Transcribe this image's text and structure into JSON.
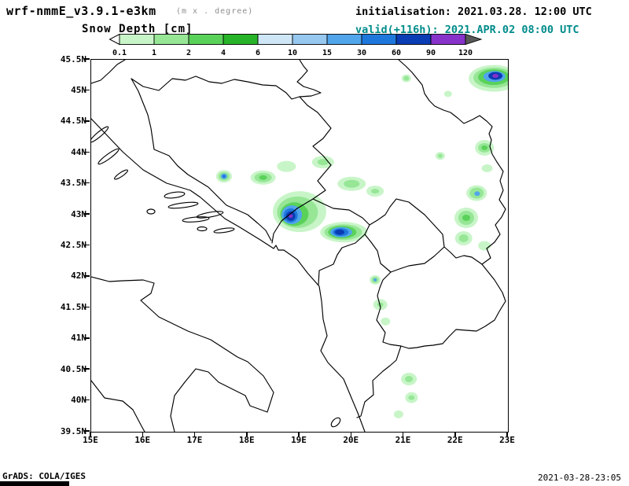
{
  "header": {
    "model": "wrf-nmmE_v3.9.1-e3km",
    "model_suffix": "(m x . degree)",
    "variable": "Snow Depth [cm]",
    "init_label": "initialisation: 2021.03.28.  12:00 UTC",
    "valid_label": "valid(+116h): 2021.APR.02 08:00 UTC"
  },
  "colorbar": {
    "tick_labels": [
      "0.1",
      "1",
      "2",
      "4",
      "6",
      "10",
      "15",
      "30",
      "60",
      "90",
      "120"
    ],
    "segment_colors": [
      "#c8f5c8",
      "#96e696",
      "#5ad25a",
      "#28b428",
      "#cee6f5",
      "#96c8f0",
      "#50a5eb",
      "#1e78dc",
      "#0a3cb4",
      "#8732c8"
    ],
    "underflow_color": "#ffffff",
    "overflow_color": "#585858"
  },
  "axes": {
    "y_ticks": [
      "45.5N",
      "45N",
      "44.5N",
      "44N",
      "43.5N",
      "43N",
      "42.5N",
      "42N",
      "41.5N",
      "41N",
      "40.5N",
      "40N",
      "39.5N"
    ],
    "x_ticks": [
      "15E",
      "16E",
      "17E",
      "18E",
      "19E",
      "20E",
      "21E",
      "22E",
      "23E"
    ]
  },
  "footer": {
    "left": "GrADS: COLA/IGES",
    "right": "2021-03-28-23:05"
  },
  "chart_data": {
    "type": "heatmap",
    "title": "Snow Depth [cm]",
    "model": "wrf-nmmE_v3.9.1-e3km",
    "initialisation": "2021.03.28 12:00 UTC",
    "valid": "2021.APR.02 08:00 UTC (+116h)",
    "units": "cm",
    "lon_range": [
      15,
      23
    ],
    "lat_range": [
      39.5,
      45.5
    ],
    "levels_cm": [
      0.1,
      1,
      2,
      4,
      6,
      10,
      15,
      30,
      60,
      90,
      120
    ],
    "legend_position": "top",
    "grid": false,
    "snow_patches": [
      [
        22.73,
        45.2,
        32,
        17,
        0
      ],
      [
        22.73,
        45.21,
        26,
        13,
        1
      ],
      [
        22.73,
        45.22,
        20,
        10,
        2
      ],
      [
        22.74,
        45.23,
        14,
        7,
        6
      ],
      [
        22.76,
        45.24,
        9,
        5,
        8
      ],
      [
        22.76,
        45.24,
        4,
        2.5,
        9
      ],
      [
        21.05,
        45.2,
        6,
        5,
        0
      ],
      [
        21.05,
        45.2,
        3.5,
        3,
        1
      ],
      [
        21.85,
        44.95,
        5,
        4,
        0
      ],
      [
        22.55,
        44.08,
        12,
        10,
        0
      ],
      [
        22.55,
        44.08,
        8,
        6,
        1
      ],
      [
        22.55,
        44.08,
        4,
        3,
        2
      ],
      [
        21.7,
        43.95,
        6,
        5,
        0
      ],
      [
        21.7,
        43.95,
        3,
        2.5,
        1
      ],
      [
        22.6,
        43.75,
        7,
        5,
        0
      ],
      [
        22.4,
        43.35,
        13,
        10,
        0
      ],
      [
        22.4,
        43.35,
        9,
        7,
        1
      ],
      [
        22.41,
        43.34,
        3.5,
        3,
        6
      ],
      [
        22.2,
        42.95,
        15,
        13,
        0
      ],
      [
        22.2,
        42.95,
        10,
        9,
        1
      ],
      [
        22.2,
        42.95,
        5,
        4,
        2
      ],
      [
        22.15,
        42.62,
        11,
        9,
        0
      ],
      [
        22.15,
        42.62,
        6,
        5,
        1
      ],
      [
        22.55,
        42.5,
        8,
        6,
        0
      ],
      [
        17.55,
        43.62,
        10,
        8,
        0
      ],
      [
        17.55,
        43.62,
        7,
        5.5,
        1
      ],
      [
        17.55,
        43.62,
        4,
        3.5,
        6
      ],
      [
        17.55,
        43.62,
        2,
        2,
        7
      ],
      [
        18.3,
        43.6,
        16,
        9,
        0
      ],
      [
        18.3,
        43.6,
        11,
        6,
        1
      ],
      [
        18.3,
        43.6,
        5,
        3,
        2
      ],
      [
        18.75,
        43.78,
        12,
        7,
        0
      ],
      [
        19.45,
        43.85,
        14,
        8,
        0
      ],
      [
        19.45,
        43.85,
        7,
        4,
        1
      ],
      [
        19.0,
        43.05,
        34,
        26,
        0
      ],
      [
        18.96,
        43.04,
        26,
        20,
        1
      ],
      [
        18.9,
        43.01,
        18,
        15,
        2
      ],
      [
        18.85,
        43.0,
        13,
        12,
        6
      ],
      [
        18.83,
        42.99,
        9,
        9,
        7
      ],
      [
        18.83,
        42.98,
        6,
        6,
        8
      ],
      [
        18.83,
        42.98,
        2.5,
        2.5,
        9
      ],
      [
        20.0,
        43.5,
        18,
        9,
        0
      ],
      [
        20.0,
        43.5,
        10,
        5,
        1
      ],
      [
        20.45,
        43.38,
        11,
        7,
        0
      ],
      [
        20.45,
        43.38,
        5,
        3,
        1
      ],
      [
        19.85,
        42.72,
        30,
        13,
        0
      ],
      [
        19.84,
        42.72,
        24,
        10,
        1
      ],
      [
        19.82,
        42.72,
        18,
        8,
        2
      ],
      [
        19.8,
        42.72,
        14,
        6.5,
        6
      ],
      [
        19.79,
        42.72,
        10,
        5,
        7
      ],
      [
        19.77,
        42.72,
        6,
        3.5,
        8
      ],
      [
        20.45,
        41.95,
        7,
        6,
        0
      ],
      [
        20.45,
        41.95,
        4.5,
        4,
        1
      ],
      [
        20.45,
        41.95,
        2,
        2,
        6
      ],
      [
        20.55,
        41.55,
        9,
        7,
        0
      ],
      [
        20.55,
        41.55,
        4,
        3,
        1
      ],
      [
        20.65,
        41.28,
        6,
        5,
        0
      ],
      [
        21.1,
        40.35,
        10,
        8,
        0
      ],
      [
        21.1,
        40.35,
        5,
        4,
        1
      ],
      [
        21.15,
        40.05,
        8,
        7,
        0
      ],
      [
        21.15,
        40.05,
        4,
        3,
        1
      ],
      [
        20.9,
        39.78,
        6,
        5,
        0
      ]
    ]
  }
}
